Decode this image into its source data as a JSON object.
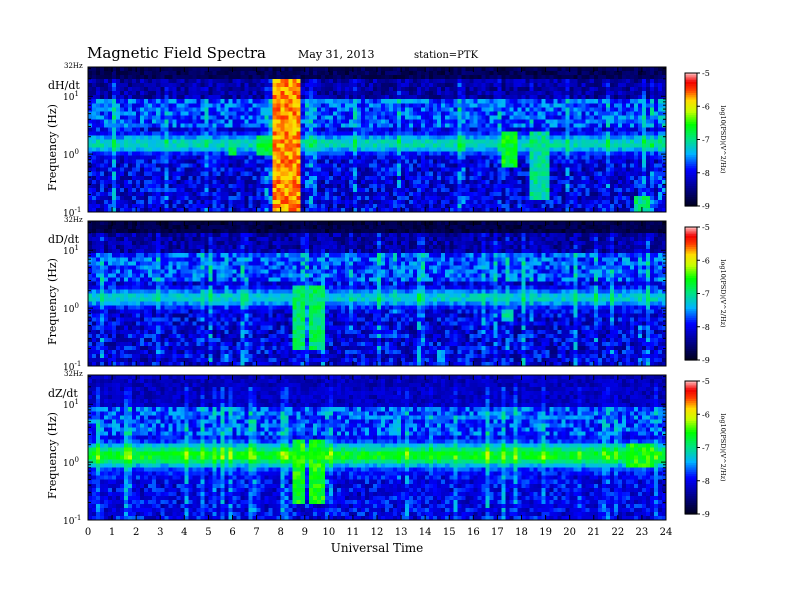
{
  "header": {
    "title": "Magnetic Field Spectra",
    "date": "May 31, 2013",
    "station": "station=PTK"
  },
  "colors": {
    "background": "#ffffff",
    "spectrum_floor": "#000014",
    "noise_blue": "#0000e0",
    "band_green": "#00e000",
    "band_yellow": "#ffe000",
    "burst_red": "#ff0000",
    "burst_pink": "#ff9999"
  },
  "chart_data": [
    {
      "type": "heatmap",
      "panel_label": "dH/dt",
      "ylabel": "Frequency (Hz)",
      "top_label": "32Hz",
      "y_scale": "log",
      "y_ticks": [
        {
          "value": 0.1,
          "base": "10",
          "exp": "-1"
        },
        {
          "value": 1,
          "base": "10",
          "exp": "0"
        },
        {
          "value": 10,
          "base": "10",
          "exp": "1"
        }
      ],
      "ylim": [
        0.1,
        32
      ],
      "xlim": [
        0,
        24
      ],
      "colorbar": {
        "label": "log10(PSD)(V^2/Hz)",
        "range": [
          -9,
          -5
        ],
        "ticks": [
          "-5",
          "-6",
          "-7",
          "-8",
          "-9"
        ]
      },
      "band_center_hz": 1.5,
      "band_level": -7.1,
      "events": [
        {
          "start": 7.7,
          "end": 8.9,
          "level": -5.4,
          "fmin": 0.1,
          "fmax": 20
        },
        {
          "start": 7.0,
          "end": 7.7,
          "level": -6.5,
          "fmin": 1.0,
          "fmax": 2.0
        },
        {
          "start": 5.9,
          "end": 6.2,
          "level": -6.5,
          "fmin": 1.0,
          "fmax": 1.5
        },
        {
          "start": 17.2,
          "end": 17.8,
          "level": -6.4,
          "fmin": 0.6,
          "fmax": 2.5
        },
        {
          "start": 18.3,
          "end": 19.2,
          "level": -6.8,
          "fmin": 0.15,
          "fmax": 2.5
        },
        {
          "start": 22.6,
          "end": 23.3,
          "level": -6.7,
          "fmin": 0.1,
          "fmax": 0.2
        }
      ]
    },
    {
      "type": "heatmap",
      "panel_label": "dD/dt",
      "ylabel": "Frequency (Hz)",
      "top_label": "32Hz",
      "y_scale": "log",
      "y_ticks": [
        {
          "value": 0.1,
          "base": "10",
          "exp": "-1"
        },
        {
          "value": 1,
          "base": "10",
          "exp": "0"
        },
        {
          "value": 10,
          "base": "10",
          "exp": "1"
        }
      ],
      "ylim": [
        0.1,
        32
      ],
      "xlim": [
        0,
        24
      ],
      "colorbar": {
        "label": "log10(PSD)(V^2/Hz)",
        "range": [
          -9,
          -5
        ],
        "ticks": [
          "-5",
          "-6",
          "-7",
          "-8",
          "-9"
        ]
      },
      "band_center_hz": 1.5,
      "band_level": -7.2,
      "events": [
        {
          "start": 8.5,
          "end": 9.0,
          "level": -6.6,
          "fmin": 0.2,
          "fmax": 2.5
        },
        {
          "start": 9.2,
          "end": 9.9,
          "level": -6.6,
          "fmin": 0.2,
          "fmax": 2.5
        },
        {
          "start": 17.2,
          "end": 17.7,
          "level": -6.9,
          "fmin": 0.6,
          "fmax": 1.0
        },
        {
          "start": 14.5,
          "end": 14.8,
          "level": -7.2,
          "fmin": 0.1,
          "fmax": 0.2
        }
      ]
    },
    {
      "type": "heatmap",
      "panel_label": "dZ/dt",
      "ylabel": "Frequency (Hz)",
      "top_label": "32Hz",
      "y_scale": "log",
      "y_ticks": [
        {
          "value": 0.1,
          "base": "10",
          "exp": "-1"
        },
        {
          "value": 1,
          "base": "10",
          "exp": "0"
        },
        {
          "value": 10,
          "base": "10",
          "exp": "1"
        }
      ],
      "ylim": [
        0.1,
        32
      ],
      "xlim": [
        0,
        24
      ],
      "colorbar": {
        "label": "log10(PSD)(V^2/Hz)",
        "range": [
          -9,
          -5
        ],
        "ticks": [
          "-5",
          "-6",
          "-7",
          "-8",
          "-9"
        ]
      },
      "band_center_hz": 1.3,
      "band_level": -6.6,
      "events": [
        {
          "start": 8.5,
          "end": 9.0,
          "level": -6.3,
          "fmin": 0.2,
          "fmax": 2.5
        },
        {
          "start": 9.2,
          "end": 9.9,
          "level": -6.3,
          "fmin": 0.2,
          "fmax": 2.5
        },
        {
          "start": 22.3,
          "end": 23.5,
          "level": -6.3,
          "fmin": 0.8,
          "fmax": 2.0
        },
        {
          "start": 11.0,
          "end": 21.0,
          "level": -7.3,
          "fmin": 5.5,
          "fmax": 6.0
        }
      ]
    }
  ],
  "x_axis": {
    "label": "Universal Time",
    "ticks": [
      "0",
      "1",
      "2",
      "3",
      "4",
      "5",
      "6",
      "7",
      "8",
      "9",
      "10",
      "11",
      "12",
      "13",
      "14",
      "15",
      "16",
      "17",
      "18",
      "19",
      "20",
      "21",
      "22",
      "23",
      "24"
    ]
  }
}
